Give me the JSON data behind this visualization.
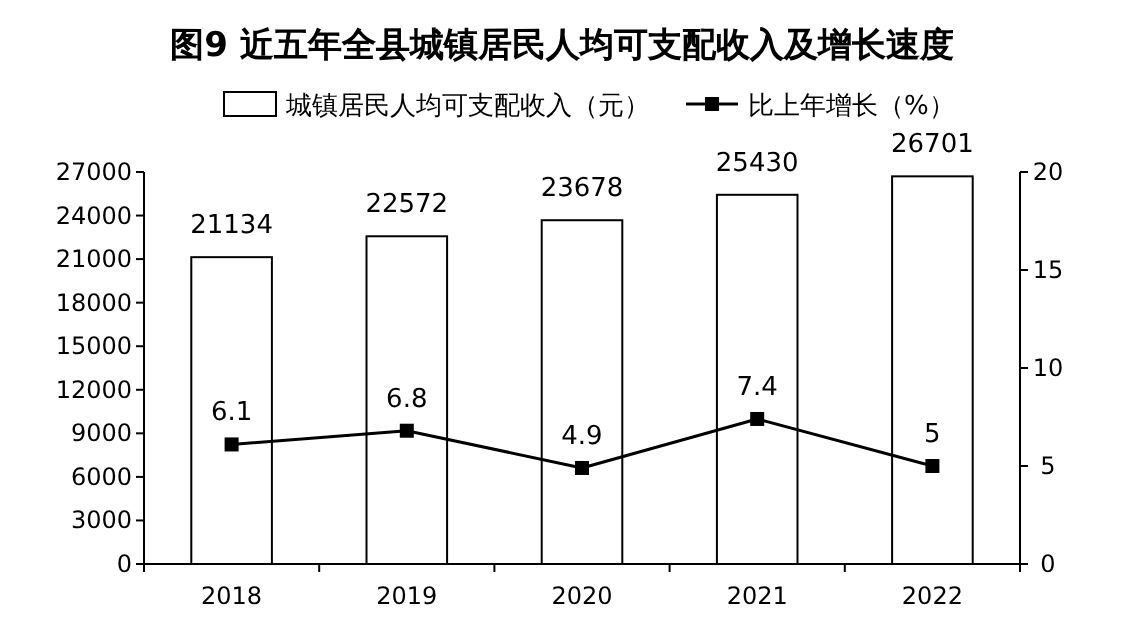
{
  "chart_data": {
    "type": "bar",
    "title": "图9  近五年全县城镇居民人均可支配收入及增长速度",
    "categories": [
      "2018",
      "2019",
      "2020",
      "2021",
      "2022"
    ],
    "series": [
      {
        "name": "城镇居民人均可支配收入（元）",
        "color": "#ffffff",
        "values": [
          21134,
          22572,
          23678,
          25430,
          26701
        ]
      },
      {
        "name": "比上年增长（%）",
        "type": "line",
        "axis": "y2",
        "color": "#000000",
        "values": [
          6.1,
          6.8,
          4.9,
          7.4,
          5
        ]
      }
    ],
    "ylim": [
      0,
      27000
    ],
    "yticks": [
      0,
      3000,
      6000,
      9000,
      12000,
      15000,
      18000,
      21000,
      24000,
      27000
    ],
    "y2lim": [
      0,
      20
    ],
    "y2ticks": [
      0,
      5,
      10,
      15,
      20
    ],
    "legend": "top",
    "data_labels": true,
    "marker": "square"
  }
}
